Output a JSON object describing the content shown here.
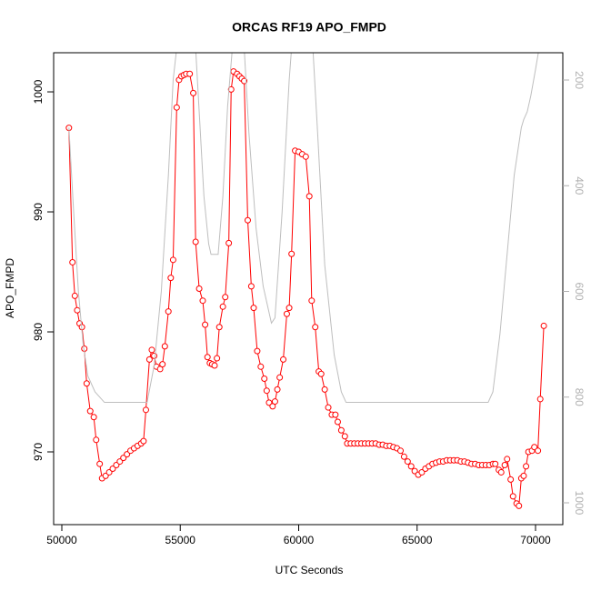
{
  "chart_data": {
    "type": "line",
    "title": "ORCAS RF19 APO_FMPD",
    "x_label": "UTC Seconds",
    "y_label": "APO_FMPD",
    "xlim": [
      49655,
      71152
    ],
    "xticks": [
      50000,
      55000,
      60000,
      65000,
      70000
    ],
    "ylim": [
      963.94,
      1003.26
    ],
    "yticks": [
      970,
      980,
      990,
      1000
    ],
    "y2lim": [
      1041.3,
      148.4
    ],
    "y2ticks": [
      200,
      400,
      600,
      800,
      1000
    ],
    "series": [
      {
        "color": "#ff0000",
        "markers": true,
        "x": [
          50300,
          50450,
          50550,
          50650,
          50750,
          50850,
          50950,
          51050,
          51200,
          51350,
          51450,
          51600,
          51700,
          51850,
          52000,
          52150,
          52300,
          52450,
          52600,
          52750,
          52900,
          53050,
          53200,
          53350,
          53450,
          53550,
          53700,
          53800,
          53900,
          54000,
          54150,
          54250,
          54350,
          54500,
          54600,
          54700,
          54850,
          54950,
          55050,
          55150,
          55250,
          55400,
          55550,
          55650,
          55800,
          55950,
          56050,
          56150,
          56250,
          56350,
          56450,
          56550,
          56650,
          56800,
          56900,
          57050,
          57150,
          57250,
          57400,
          57500,
          57600,
          57700,
          57850,
          58000,
          58100,
          58250,
          58400,
          58550,
          58650,
          58750,
          58900,
          59000,
          59100,
          59200,
          59350,
          59500,
          59600,
          59700,
          59850,
          60000,
          60150,
          60300,
          60450,
          60550,
          60700,
          60850,
          60950,
          61100,
          61250,
          61400,
          61550,
          61650,
          61800,
          61950,
          62050,
          62200,
          62350,
          62500,
          62650,
          62800,
          62950,
          63100,
          63250,
          63400,
          63550,
          63700,
          63850,
          64000,
          64150,
          64300,
          64450,
          64600,
          64750,
          64900,
          65050,
          65200,
          65350,
          65500,
          65650,
          65800,
          65950,
          66100,
          66250,
          66400,
          66550,
          66700,
          66850,
          67000,
          67150,
          67300,
          67450,
          67600,
          67750,
          67900,
          68050,
          68200,
          68300,
          68450,
          68550,
          68700,
          68800,
          68950,
          69050,
          69200,
          69300,
          69400,
          69500,
          69600,
          69700,
          69850,
          69950,
          70100,
          70200,
          70350
        ],
        "values": [
          997,
          985.8,
          983,
          981.8,
          980.7,
          980.4,
          978.6,
          975.7,
          973.4,
          972.9,
          971,
          969,
          967.8,
          968,
          968.3,
          968.6,
          968.9,
          969.2,
          969.5,
          969.8,
          970.1,
          970.3,
          970.5,
          970.7,
          970.9,
          973.5,
          977.7,
          978.5,
          978,
          977.1,
          976.9,
          977.3,
          978.8,
          981.7,
          984.5,
          986,
          998.7,
          1001,
          1001.3,
          1001.4,
          1001.5,
          1001.5,
          999.9,
          987.5,
          983.6,
          982.6,
          980.6,
          977.9,
          977.4,
          977.3,
          977.2,
          977.8,
          980.4,
          982.1,
          982.9,
          987.4,
          1000.2,
          1001.7,
          1001.5,
          1001.3,
          1001.1,
          1000.9,
          989.3,
          983.8,
          982,
          978.4,
          977.1,
          976.1,
          975.1,
          974.1,
          973.8,
          974.2,
          975.2,
          976.2,
          977.7,
          981.5,
          982,
          986.5,
          995.1,
          995,
          994.8,
          994.6,
          991.3,
          982.6,
          980.4,
          976.7,
          976.5,
          975.2,
          973.7,
          973.1,
          973.1,
          972.5,
          971.8,
          971.3,
          970.7,
          970.7,
          970.7,
          970.7,
          970.7,
          970.7,
          970.7,
          970.7,
          970.7,
          970.6,
          970.6,
          970.5,
          970.5,
          970.4,
          970.3,
          970.1,
          969.6,
          969.2,
          968.8,
          968.4,
          968.1,
          968.3,
          968.6,
          968.8,
          969,
          969.1,
          969.2,
          969.2,
          969.3,
          969.3,
          969.3,
          969.3,
          969.2,
          969.2,
          969.1,
          969,
          969,
          968.9,
          968.9,
          968.9,
          968.9,
          969,
          969,
          968.5,
          968.3,
          968.9,
          969.4,
          967.7,
          966.3,
          965.7,
          965.5,
          967.8,
          968,
          968.8,
          970,
          970.1,
          970.4,
          970.1,
          974.4,
          980.5
        ]
      },
      {
        "color": "#bebebe",
        "axis": "y2",
        "markers": false,
        "x": [
          50300,
          50500,
          50700,
          50900,
          51100,
          51400,
          51800,
          53600,
          53900,
          54200,
          54500,
          54700,
          54850,
          55650,
          55800,
          56000,
          56200,
          56300,
          56600,
          56800,
          57000,
          57200,
          57700,
          57900,
          58200,
          58500,
          58850,
          59000,
          59300,
          59600,
          59700,
          60600,
          60800,
          61100,
          61500,
          61800,
          62000,
          68000,
          68200,
          68500,
          68800,
          69100,
          69400,
          69500,
          69650,
          69800,
          70000,
          70150
        ],
        "values": [
          290,
          450,
          600,
          700,
          760,
          790,
          810,
          810,
          740,
          600,
          380,
          200,
          140,
          140,
          260,
          420,
          510,
          530,
          530,
          420,
          250,
          140,
          140,
          300,
          480,
          590,
          660,
          650,
          450,
          200,
          140,
          140,
          300,
          550,
          720,
          790,
          810,
          810,
          790,
          680,
          530,
          380,
          290,
          275,
          260,
          230,
          180,
          140
        ]
      }
    ]
  }
}
